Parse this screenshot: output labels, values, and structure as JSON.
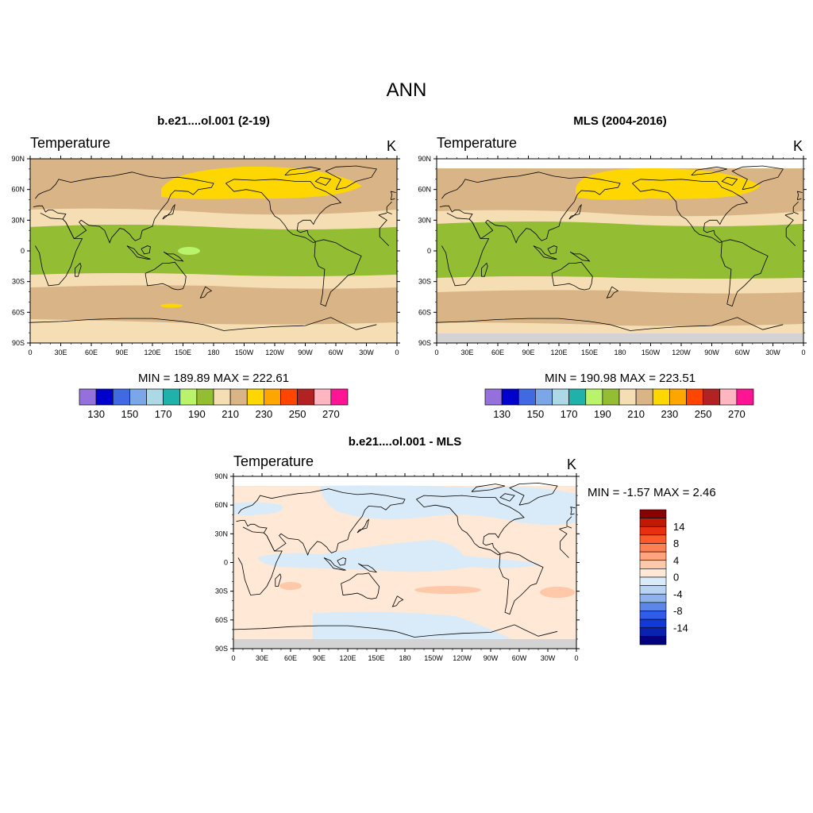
{
  "page_title": "ANN",
  "panels": [
    {
      "id": "model",
      "title": "b.e21....ol.001 (2-19)",
      "variable": "Temperature",
      "units": "K",
      "min_max": "MIN = 189.89  MAX = 222.61"
    },
    {
      "id": "obs",
      "title": "MLS (2004-2016)",
      "variable": "Temperature",
      "units": "K",
      "min_max": "MIN = 190.98  MAX = 223.51"
    },
    {
      "id": "diff",
      "title": "b.e21....ol.001 - MLS",
      "variable": "Temperature",
      "units": "K",
      "min_max": "MIN =  -1.57  MAX =   2.46"
    }
  ],
  "axes": {
    "lat_labels": [
      "90N",
      "60N",
      "30N",
      "0",
      "30S",
      "60S",
      "90S"
    ],
    "lon_labels": [
      "0",
      "30E",
      "60E",
      "90E",
      "120E",
      "150E",
      "180",
      "150W",
      "120W",
      "90W",
      "60W",
      "30W",
      "0"
    ]
  },
  "colorbar_main": {
    "colors": [
      "#9370DB",
      "#0000CD",
      "#4169E1",
      "#7BA7E8",
      "#ADD8E6",
      "#20B2AA",
      "#B9F36B",
      "#93BD32",
      "#F5DEB3",
      "#D9B486",
      "#FFD700",
      "#FFA500",
      "#FF4500",
      "#B22222",
      "#FFB6C1",
      "#FF1493"
    ],
    "labels": [
      "130",
      "150",
      "170",
      "190",
      "210",
      "230",
      "250",
      "270"
    ]
  },
  "colorbar_diff": {
    "colors": [
      "#8B0000",
      "#C01A00",
      "#E83010",
      "#FF5A28",
      "#FF8050",
      "#FFA47C",
      "#FFC8A8",
      "#FFE8D6",
      "#D9EAF8",
      "#B8D3F3",
      "#8FB2EE",
      "#5C86EA",
      "#2F5CEB",
      "#1238D8",
      "#0A22B0",
      "#000080"
    ],
    "labels": [
      "14",
      "8",
      "4",
      "0",
      "-4",
      "-8",
      "-14"
    ]
  },
  "chart_data": {
    "type": "map",
    "projection": "cylindrical equidistant",
    "land_outline_color": "#000000",
    "model_bands": [
      {
        "lat_from": 90,
        "lat_to": 80,
        "value_range": "210-220",
        "color": "#D9B486"
      },
      {
        "lat_from": 80,
        "lat_to": 38,
        "value_range": "210-220",
        "color": "#D9B486"
      },
      {
        "lat_from": 38,
        "lat_to": 28,
        "value_range": "200-210",
        "color": "#F5DEB3"
      },
      {
        "lat_from": 28,
        "lat_to": -22,
        "value_range": "190-200",
        "color": "#93BD32"
      },
      {
        "lat_from": -22,
        "lat_to": -35,
        "value_range": "200-210",
        "color": "#F5DEB3"
      },
      {
        "lat_from": -35,
        "lat_to": -70,
        "value_range": "210-220",
        "color": "#D9B486"
      },
      {
        "lat_from": -70,
        "lat_to": -90,
        "value_range": "200-210",
        "color": "#F5DEB3"
      }
    ],
    "obs_bands": [
      {
        "lat_from": 90,
        "lat_to": 80,
        "value_range": "missing",
        "color": "#FFFFFF"
      },
      {
        "lat_from": 80,
        "lat_to": 38,
        "value_range": "210-220",
        "color": "#D9B486"
      },
      {
        "lat_from": 38,
        "lat_to": 28,
        "value_range": "200-210",
        "color": "#F5DEB3"
      },
      {
        "lat_from": 28,
        "lat_to": -25,
        "value_range": "190-200",
        "color": "#93BD32"
      },
      {
        "lat_from": -25,
        "lat_to": -38,
        "value_range": "200-210",
        "color": "#F5DEB3"
      },
      {
        "lat_from": -38,
        "lat_to": -70,
        "value_range": "210-220",
        "color": "#D9B486"
      },
      {
        "lat_from": -70,
        "lat_to": -80,
        "value_range": "200-210",
        "color": "#F5DEB3"
      },
      {
        "lat_from": -80,
        "lat_to": -90,
        "value_range": "missing",
        "color": "#D3D3D3"
      }
    ],
    "diff_bands": [
      {
        "lat_from": 90,
        "lat_to": 80,
        "value_range": "missing",
        "color": "#FFFFFF"
      },
      {
        "lat_from": -80,
        "lat_to": -90,
        "value_range": "missing",
        "color": "#D3D3D3"
      }
    ]
  }
}
